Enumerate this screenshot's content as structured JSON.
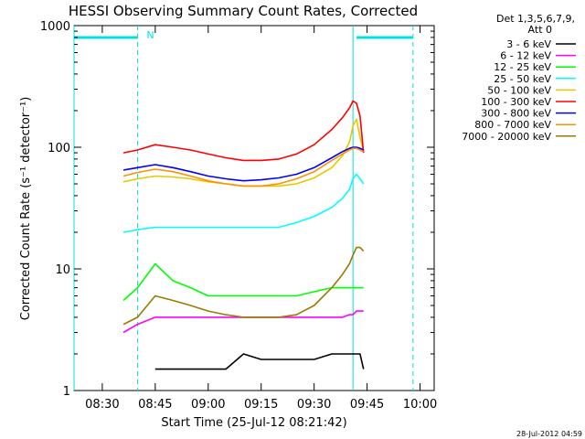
{
  "chart_data": {
    "type": "line",
    "title": "HESSI Observing Summary Count Rates, Corrected",
    "xlabel": "Start Time (25-Jul-12 08:21:42)",
    "ylabel": "Corrected Count Rate (s⁻¹ detector⁻¹)",
    "xlim": [
      "08:22",
      "10:04"
    ],
    "ylim": [
      1,
      1000
    ],
    "yscale": "log",
    "x_ticks": [
      "08:30",
      "08:45",
      "09:00",
      "09:15",
      "09:30",
      "09:45",
      "10:00"
    ],
    "y_ticks": [
      "1",
      "10",
      "100",
      "1000"
    ],
    "legend_header": [
      "Det 1,3,5,6,7,9,",
      "Att 0"
    ],
    "legend_position": "right",
    "timestamp": "28-Jul-2012 04:59",
    "annotations": [
      {
        "text": "N",
        "x": "08:41"
      }
    ],
    "markers": {
      "cyan_vertical_solid": [
        "08:22",
        "09:41"
      ],
      "cyan_vertical_dashed": [
        "08:40",
        "09:58"
      ],
      "top_bars": [
        [
          "08:22",
          "08:40"
        ],
        [
          "09:42",
          "09:58"
        ]
      ],
      "color": "#00e0e0"
    },
    "x": [
      "08:36",
      "08:40",
      "08:45",
      "08:50",
      "08:55",
      "09:00",
      "09:05",
      "09:10",
      "09:15",
      "09:20",
      "09:25",
      "09:30",
      "09:35",
      "09:38",
      "09:40",
      "09:41",
      "09:42",
      "09:43",
      "09:44"
    ],
    "series": [
      {
        "name": "3 - 6 keV",
        "color": "#000000",
        "values": [
          null,
          null,
          1.5,
          1.5,
          1.5,
          1.5,
          1.5,
          2.0,
          1.8,
          1.8,
          1.8,
          1.8,
          2.0,
          2.0,
          2.0,
          2.0,
          2.0,
          2.0,
          1.5
        ]
      },
      {
        "name": "6 - 12 keV",
        "color": "#ff00ff",
        "values": [
          3,
          3.5,
          4,
          4,
          4,
          4,
          4,
          4,
          4,
          4,
          4,
          4,
          4,
          4,
          4.2,
          4.2,
          4.5,
          4.5,
          4.5
        ]
      },
      {
        "name": "12 - 25 keV",
        "color": "#00ff00",
        "values": [
          5.5,
          7,
          11,
          8,
          7,
          6,
          6,
          6,
          6,
          6,
          6,
          6.5,
          7,
          7,
          7,
          7,
          7,
          7,
          7
        ]
      },
      {
        "name": "25 - 50 keV",
        "color": "#00ffff",
        "values": [
          20,
          21,
          22,
          22,
          22,
          22,
          22,
          22,
          22,
          22,
          24,
          27,
          32,
          38,
          45,
          55,
          60,
          55,
          50
        ]
      },
      {
        "name": "50 - 100 keV",
        "color": "#e6c800",
        "values": [
          52,
          55,
          58,
          57,
          55,
          52,
          50,
          48,
          48,
          48,
          50,
          56,
          68,
          85,
          110,
          150,
          170,
          120,
          95
        ]
      },
      {
        "name": "100 - 300 keV",
        "color": "#ff0000",
        "values": [
          90,
          95,
          105,
          100,
          95,
          88,
          82,
          78,
          78,
          80,
          88,
          105,
          140,
          175,
          210,
          240,
          230,
          180,
          90
        ]
      },
      {
        "name": "300 - 800 keV",
        "color": "#0000ff",
        "values": [
          65,
          68,
          72,
          68,
          63,
          58,
          55,
          53,
          54,
          56,
          60,
          68,
          82,
          92,
          98,
          100,
          100,
          98,
          95
        ]
      },
      {
        "name": "800 - 7000 keV",
        "color": "#ff9000",
        "values": [
          58,
          62,
          66,
          63,
          58,
          53,
          50,
          48,
          48,
          50,
          55,
          63,
          78,
          88,
          95,
          98,
          98,
          95,
          92
        ]
      },
      {
        "name": "7000 - 20000 keV",
        "color": "#9a7a00",
        "values": [
          3.5,
          4,
          6,
          5.5,
          5,
          4.5,
          4.2,
          4,
          4,
          4,
          4.2,
          5,
          7,
          9,
          11,
          13,
          15,
          15,
          14
        ]
      }
    ]
  }
}
